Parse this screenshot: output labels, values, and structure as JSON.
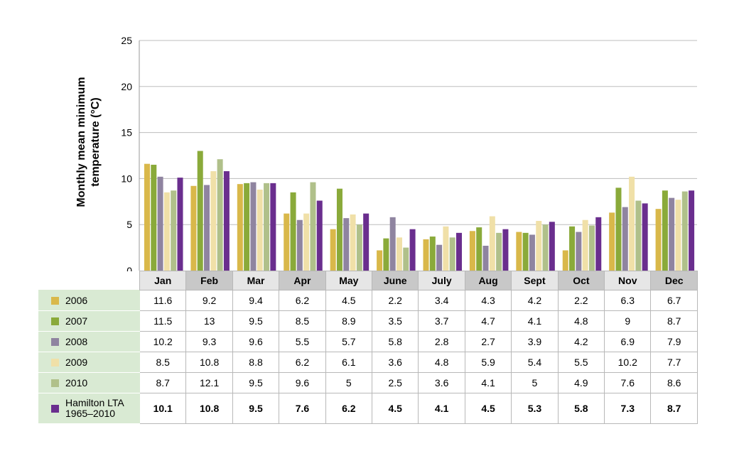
{
  "chart_data": {
    "type": "bar",
    "title": "",
    "xlabel": "",
    "ylabel_lines": [
      "Monthly mean minimum",
      "temperature (°C)"
    ],
    "ylim": [
      0,
      25
    ],
    "yticks": [
      "0",
      "5",
      "10",
      "15",
      "20",
      "25"
    ],
    "grid": true,
    "categories": [
      "Jan",
      "Feb",
      "Mar",
      "Apr",
      "May",
      "June",
      "July",
      "Aug",
      "Sept",
      "Oct",
      "Nov",
      "Dec"
    ],
    "series": [
      {
        "name": "2006",
        "color": "#d9b84a",
        "values": [
          11.6,
          9.2,
          9.4,
          6.2,
          4.5,
          2.2,
          3.4,
          4.3,
          4.2,
          2.2,
          6.3,
          6.7
        ],
        "bold": false
      },
      {
        "name": "2007",
        "color": "#8aaa3a",
        "values": [
          11.5,
          13,
          9.5,
          8.5,
          8.9,
          3.5,
          3.7,
          4.7,
          4.1,
          4.8,
          9,
          8.7
        ],
        "bold": false
      },
      {
        "name": "2008",
        "color": "#8f84a0",
        "values": [
          10.2,
          9.3,
          9.6,
          5.5,
          5.7,
          5.8,
          2.8,
          2.7,
          3.9,
          4.2,
          6.9,
          7.9
        ],
        "bold": false
      },
      {
        "name": "2009",
        "color": "#f0e0a8",
        "values": [
          8.5,
          10.8,
          8.8,
          6.2,
          6.1,
          3.6,
          4.8,
          5.9,
          5.4,
          5.5,
          10.2,
          7.7
        ],
        "bold": false
      },
      {
        "name": "2010",
        "color": "#b0c08a",
        "values": [
          8.7,
          12.1,
          9.5,
          9.6,
          5,
          2.5,
          3.6,
          4.1,
          5,
          4.9,
          7.6,
          8.6
        ],
        "bold": false
      },
      {
        "name": "Hamilton LTA 1965–2010",
        "label_lines": [
          "Hamilton LTA",
          "1965–2010"
        ],
        "color": "#6a2e8e",
        "values": [
          10.1,
          10.8,
          9.5,
          7.6,
          6.2,
          4.5,
          4.1,
          4.5,
          5.3,
          5.8,
          7.3,
          8.7
        ],
        "bold": true
      }
    ]
  }
}
